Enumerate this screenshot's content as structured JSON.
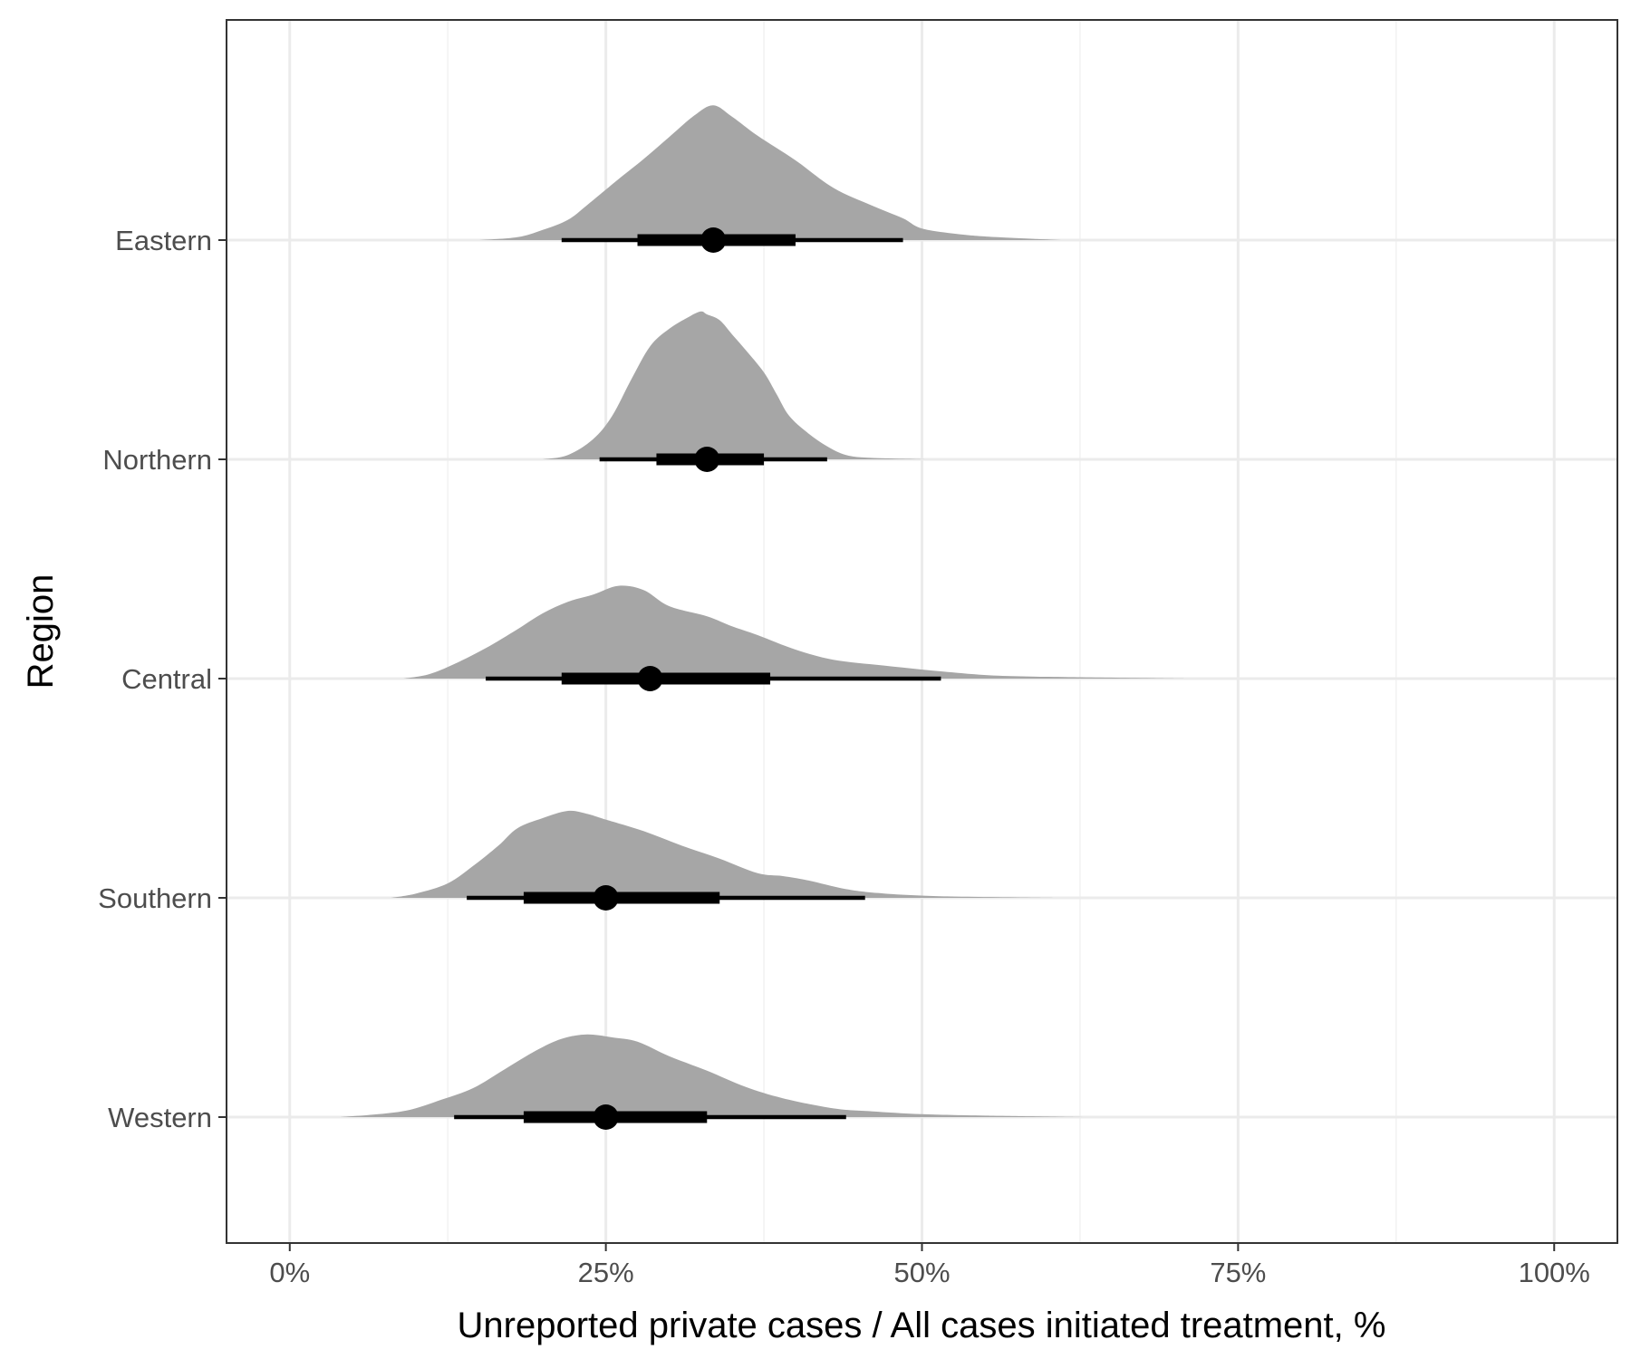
{
  "chart_data": {
    "type": "ridgeline-halfeye",
    "title": "",
    "xlabel": "Unreported private cases / All cases initiated treatment, %",
    "ylabel": "Region",
    "xlim": [
      -5,
      105
    ],
    "x_ticks": [
      0,
      25,
      50,
      75,
      100
    ],
    "x_tick_labels": [
      "0%",
      "25%",
      "50%",
      "75%",
      "100%"
    ],
    "grid": true,
    "colors": {
      "density": "#a6a6a6",
      "interval": "#000000",
      "grid_major": "#ebebeb",
      "grid_minor": "#f2f2f2",
      "panel_border": "#333333"
    },
    "categories": [
      "Eastern",
      "Northern",
      "Central",
      "Southern",
      "Western"
    ],
    "series": [
      {
        "region": "Eastern",
        "median": 33.5,
        "interval_66": [
          27.5,
          40
        ],
        "interval_95": [
          21.5,
          48.5
        ],
        "density": [
          [
            15,
            0
          ],
          [
            18,
            0.02
          ],
          [
            20,
            0.07
          ],
          [
            22,
            0.14
          ],
          [
            23.5,
            0.24
          ],
          [
            26,
            0.42
          ],
          [
            28,
            0.56
          ],
          [
            30,
            0.71
          ],
          [
            32,
            0.86
          ],
          [
            33.5,
            0.93
          ],
          [
            35,
            0.85
          ],
          [
            37,
            0.72
          ],
          [
            40,
            0.55
          ],
          [
            43,
            0.36
          ],
          [
            46,
            0.24
          ],
          [
            48.5,
            0.15
          ],
          [
            50,
            0.08
          ],
          [
            53,
            0.04
          ],
          [
            56,
            0.02
          ],
          [
            61,
            0
          ]
        ]
      },
      {
        "region": "Northern",
        "median": 33,
        "interval_66": [
          29,
          37.5
        ],
        "interval_95": [
          24.5,
          42.5
        ],
        "density": [
          [
            20,
            0
          ],
          [
            22,
            0.03
          ],
          [
            24,
            0.14
          ],
          [
            25.5,
            0.3
          ],
          [
            27,
            0.55
          ],
          [
            28.5,
            0.78
          ],
          [
            30,
            0.9
          ],
          [
            31.5,
            0.98
          ],
          [
            32.5,
            1.02
          ],
          [
            33,
            1.0
          ],
          [
            34,
            0.96
          ],
          [
            35,
            0.86
          ],
          [
            36,
            0.76
          ],
          [
            37.5,
            0.6
          ],
          [
            38.5,
            0.45
          ],
          [
            39.5,
            0.3
          ],
          [
            41,
            0.18
          ],
          [
            42.5,
            0.09
          ],
          [
            44,
            0.03
          ],
          [
            46,
            0.01
          ],
          [
            50.5,
            0
          ]
        ]
      },
      {
        "region": "Central",
        "median": 28.5,
        "interval_66": [
          21.5,
          38
        ],
        "interval_95": [
          15.5,
          51.5
        ],
        "density": [
          [
            9,
            0
          ],
          [
            11,
            0.03
          ],
          [
            13,
            0.1
          ],
          [
            15.5,
            0.21
          ],
          [
            18,
            0.34
          ],
          [
            20,
            0.45
          ],
          [
            22,
            0.53
          ],
          [
            24,
            0.58
          ],
          [
            26,
            0.64
          ],
          [
            28,
            0.61
          ],
          [
            30,
            0.5
          ],
          [
            33,
            0.43
          ],
          [
            35,
            0.36
          ],
          [
            37,
            0.3
          ],
          [
            40,
            0.2
          ],
          [
            43,
            0.13
          ],
          [
            47,
            0.09
          ],
          [
            51.5,
            0.05
          ],
          [
            56,
            0.02
          ],
          [
            62,
            0.01
          ],
          [
            71,
            0
          ]
        ]
      },
      {
        "region": "Southern",
        "median": 25,
        "interval_66": [
          18.5,
          34
        ],
        "interval_95": [
          14,
          45.5
        ],
        "density": [
          [
            8,
            0
          ],
          [
            10,
            0.03
          ],
          [
            12.5,
            0.1
          ],
          [
            14.5,
            0.22
          ],
          [
            16.5,
            0.36
          ],
          [
            18,
            0.48
          ],
          [
            20,
            0.55
          ],
          [
            22,
            0.6
          ],
          [
            23.5,
            0.58
          ],
          [
            25,
            0.54
          ],
          [
            28,
            0.46
          ],
          [
            31,
            0.36
          ],
          [
            34,
            0.27
          ],
          [
            37,
            0.17
          ],
          [
            39,
            0.15
          ],
          [
            41,
            0.12
          ],
          [
            44,
            0.06
          ],
          [
            47,
            0.03
          ],
          [
            52,
            0.01
          ],
          [
            60.5,
            0
          ]
        ]
      },
      {
        "region": "Western",
        "median": 25,
        "interval_66": [
          18.5,
          33
        ],
        "interval_95": [
          13,
          44
        ],
        "density": [
          [
            4,
            0
          ],
          [
            7,
            0.02
          ],
          [
            9.5,
            0.05
          ],
          [
            12,
            0.12
          ],
          [
            14.5,
            0.2
          ],
          [
            17,
            0.33
          ],
          [
            19.5,
            0.46
          ],
          [
            21.5,
            0.54
          ],
          [
            23.5,
            0.57
          ],
          [
            25.5,
            0.55
          ],
          [
            27.5,
            0.52
          ],
          [
            30,
            0.42
          ],
          [
            33,
            0.32
          ],
          [
            36,
            0.21
          ],
          [
            39,
            0.13
          ],
          [
            43,
            0.06
          ],
          [
            46,
            0.04
          ],
          [
            50,
            0.02
          ],
          [
            55,
            0.01
          ],
          [
            63,
            0
          ]
        ]
      }
    ]
  }
}
